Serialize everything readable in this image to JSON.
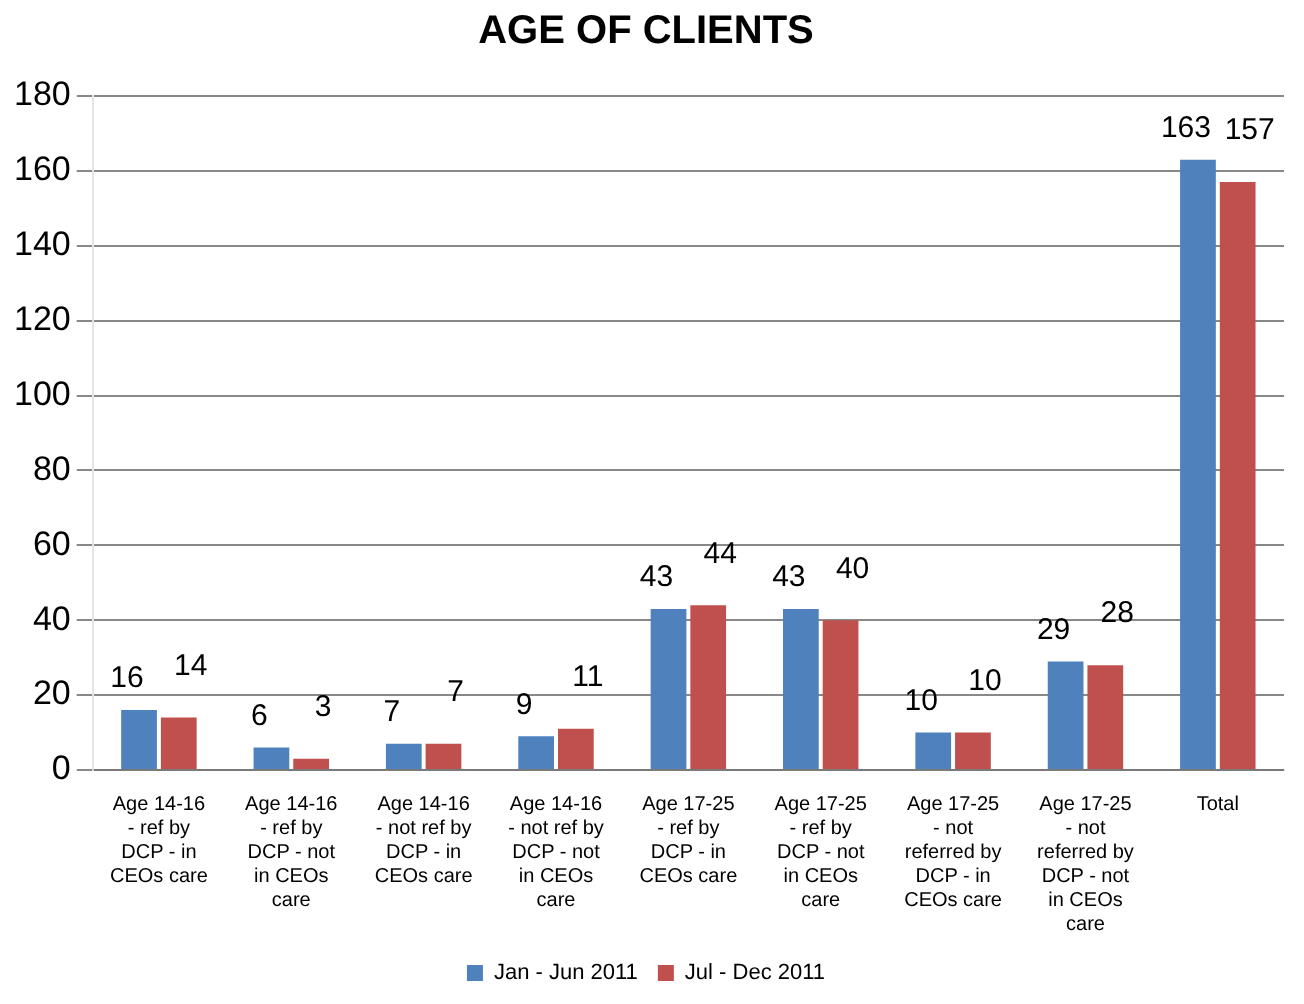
{
  "chart_data": {
    "type": "bar",
    "title": "AGE OF CLIENTS",
    "categories": [
      "Age 14-16 - ref by DCP - in CEOs care",
      "Age 14-16 - ref by DCP - not in CEOs care",
      "Age 14-16 - not ref by DCP - in CEOs care",
      "Age 14-16 - not ref by DCP - not in CEOs care",
      "Age 17-25 - ref by DCP - in CEOs care",
      "Age 17-25 - ref by DCP - not in CEOs care",
      "Age 17-25 - not referred by DCP - in CEOs care",
      "Age 17-25 - not referred by DCP - not in CEOs care",
      "Total"
    ],
    "series": [
      {
        "name": "Jan - Jun 2011",
        "color": "#4f81bd",
        "values": [
          16,
          6,
          7,
          9,
          43,
          43,
          10,
          29,
          163
        ]
      },
      {
        "name": "Jul - Dec 2011",
        "color": "#c0504d",
        "values": [
          14,
          3,
          7,
          11,
          44,
          40,
          10,
          28,
          157
        ]
      }
    ],
    "ylim": [
      0,
      180
    ],
    "yticks": [
      0,
      20,
      40,
      60,
      80,
      100,
      120,
      140,
      160,
      180
    ],
    "grid": "y",
    "legend": "bottom",
    "data_labels": true
  }
}
